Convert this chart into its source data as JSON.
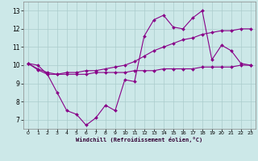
{
  "xlabel": "Windchill (Refroidissement éolien,°C)",
  "background_color": "#cce8e8",
  "line_color": "#880088",
  "grid_color": "#aacccc",
  "xlim": [
    -0.5,
    23.5
  ],
  "ylim": [
    6.5,
    13.5
  ],
  "yticks": [
    7,
    8,
    9,
    10,
    11,
    12,
    13
  ],
  "xticks": [
    0,
    1,
    2,
    3,
    4,
    5,
    6,
    7,
    8,
    9,
    10,
    11,
    12,
    13,
    14,
    15,
    16,
    17,
    18,
    19,
    20,
    21,
    22,
    23
  ],
  "series": [
    [
      10.1,
      10.0,
      9.5,
      8.5,
      7.5,
      7.3,
      6.7,
      7.1,
      7.8,
      7.5,
      9.2,
      9.1,
      11.6,
      12.5,
      12.75,
      12.1,
      12.0,
      12.6,
      13.0,
      10.3,
      11.1,
      10.8,
      10.1,
      10.0
    ],
    [
      10.1,
      9.8,
      9.6,
      9.5,
      9.6,
      9.6,
      9.7,
      9.7,
      9.8,
      9.9,
      10.0,
      10.2,
      10.5,
      10.8,
      11.0,
      11.2,
      11.4,
      11.5,
      11.7,
      11.8,
      11.9,
      11.9,
      12.0,
      12.0
    ],
    [
      10.1,
      9.75,
      9.5,
      9.5,
      9.5,
      9.5,
      9.5,
      9.6,
      9.6,
      9.6,
      9.6,
      9.7,
      9.7,
      9.7,
      9.8,
      9.8,
      9.8,
      9.8,
      9.9,
      9.9,
      9.9,
      9.9,
      10.0,
      10.0
    ]
  ]
}
